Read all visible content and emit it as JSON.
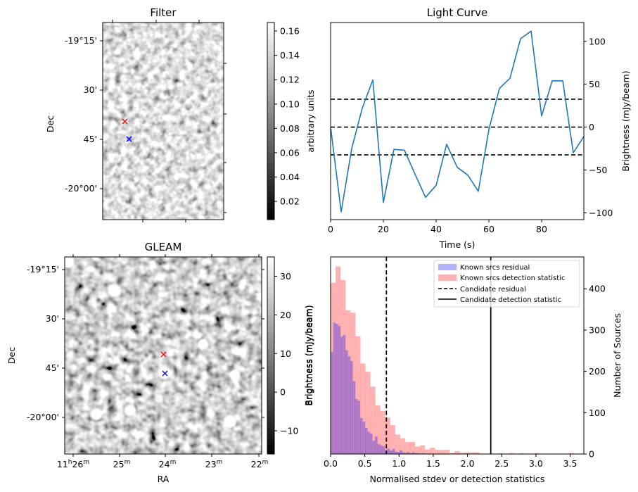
{
  "panels": {
    "filter": {
      "title": "Filter",
      "ylabel": "Dec",
      "dec_ticks": [
        "-19°15'",
        "30'",
        "45'",
        "-20°00'"
      ],
      "colorbar": {
        "label": "arbitrary units",
        "range": [
          0.005,
          0.167
        ],
        "ticks": [
          "0.02",
          "0.04",
          "0.06",
          "0.08",
          "0.10",
          "0.12",
          "0.14",
          "0.16"
        ],
        "tick_values": [
          0.02,
          0.04,
          0.06,
          0.08,
          0.1,
          0.12,
          0.14,
          0.16
        ],
        "colormap": "gray"
      },
      "markers": [
        {
          "name": "candidate-position",
          "color": "#ff0000",
          "symbol": "x"
        },
        {
          "name": "known-source-position",
          "color": "#0000ff",
          "symbol": "x"
        }
      ]
    },
    "gleam": {
      "title": "GLEAM",
      "xlabel": "RA",
      "ylabel": "Dec",
      "ra_ticks": [
        {
          "main": "11",
          "sup1": "h",
          "main2": "26",
          "sup2": "m"
        },
        {
          "main": "25",
          "sup": "m"
        },
        {
          "main": "24",
          "sup": "m"
        },
        {
          "main": "23",
          "sup": "m"
        },
        {
          "main": "22",
          "sup": "m"
        }
      ],
      "dec_ticks": [
        "-19°15'",
        "30'",
        "45'",
        "-20°00'"
      ],
      "colorbar": {
        "label": "Brightness (mJy/beam)",
        "range": [
          -16,
          35
        ],
        "ticks": [
          "−10",
          "0",
          "10",
          "20",
          "30"
        ],
        "tick_values": [
          -10,
          0,
          10,
          20,
          30
        ],
        "colormap": "gray"
      },
      "markers": [
        {
          "name": "candidate-position",
          "color": "#ff0000",
          "symbol": "x"
        },
        {
          "name": "known-source-position",
          "color": "#0000ff",
          "symbol": "x"
        }
      ]
    }
  },
  "chart_data": [
    {
      "type": "line",
      "title": "Light Curve",
      "xlabel": "Time (s)",
      "ylabel": "Brightness (mJy/beam)",
      "xlim": [
        0,
        96
      ],
      "ylim": [
        -108,
        122
      ],
      "xticks": [
        0,
        20,
        40,
        60,
        80
      ],
      "yticks": [
        -100,
        -50,
        0,
        50,
        100
      ],
      "ytick_labels": [
        "−100",
        "−50",
        "0",
        "50",
        "100"
      ],
      "yaxis_side": "right",
      "series": [
        {
          "name": "light-curve",
          "color": "#1f77b4",
          "x": [
            0,
            4,
            8,
            12,
            16,
            20,
            24,
            28,
            32,
            36,
            40,
            44,
            48,
            52,
            56,
            60,
            64,
            68,
            72,
            76,
            80,
            84,
            88,
            92,
            96
          ],
          "y": [
            0,
            -99,
            -25,
            22,
            55,
            -88,
            -26,
            -27,
            -55,
            -82,
            -68,
            -20,
            -47,
            -56,
            -75,
            -3,
            45,
            57,
            103,
            112,
            13,
            54,
            54,
            -30,
            -11
          ]
        }
      ],
      "hlines": [
        {
          "name": "upper-threshold",
          "y": 32.5,
          "style": "dashed",
          "color": "#000000"
        },
        {
          "name": "mean",
          "y": 0,
          "style": "dashed",
          "color": "#000000"
        },
        {
          "name": "lower-threshold",
          "y": -32.5,
          "style": "dashed",
          "color": "#000000"
        }
      ]
    },
    {
      "type": "bar",
      "subtype": "histogram",
      "title": "",
      "xlabel": "Normalised stdev or detection statistics",
      "ylabel_left": "Brightness (mJy/beam)",
      "ylabel": "Number of Sources",
      "xlim": [
        0,
        3.7
      ],
      "ylim": [
        0,
        477
      ],
      "xticks": [
        0.0,
        0.5,
        1.0,
        1.5,
        2.0,
        2.5,
        3.0,
        3.5
      ],
      "xtick_labels": [
        "0.0",
        "0.5",
        "1.0",
        "1.5",
        "2.0",
        "2.5",
        "3.0",
        "3.5"
      ],
      "yticks": [
        0,
        100,
        200,
        300,
        400
      ],
      "yaxis_side": "right",
      "series": [
        {
          "name": "Known srcs residual",
          "color": "#0000ff",
          "alpha": 0.3,
          "bin_start": 0.0,
          "bin_width": 0.036,
          "values": [
            247,
            318,
            315,
            310,
            284,
            288,
            251,
            237,
            225,
            176,
            133,
            129,
            87,
            78,
            63,
            54,
            49,
            32,
            42,
            24,
            21,
            19,
            10,
            13,
            8,
            12,
            6,
            5,
            9,
            4,
            3,
            5,
            2,
            4,
            2,
            2,
            1,
            2,
            1,
            1
          ]
        },
        {
          "name": "Known srcs detection statistic",
          "color": "#ff0000",
          "alpha": 0.3,
          "bin_start": 0.0,
          "bin_width": 0.0725,
          "values": [
            414,
            454,
            421,
            348,
            342,
            285,
            219,
            199,
            163,
            118,
            104,
            88,
            70,
            47,
            38,
            29,
            29,
            18,
            21,
            11,
            15,
            10,
            10,
            10,
            2,
            7,
            3,
            4,
            4,
            4,
            1,
            0,
            1,
            0,
            2,
            0,
            2,
            0,
            2,
            0,
            0,
            2,
            0,
            0,
            0,
            0,
            0,
            0,
            2
          ]
        }
      ],
      "vlines": [
        {
          "name": "Candidate residual",
          "x": 0.815,
          "style": "dashed",
          "color": "#000000"
        },
        {
          "name": "Candidate detection statistic",
          "x": 2.34,
          "style": "solid",
          "color": "#000000"
        }
      ],
      "legend": {
        "placement": "top-right",
        "entries": [
          {
            "label": "Known srcs residual",
            "kind": "patch",
            "color": "#b2b2ff"
          },
          {
            "label": "Known srcs detection statistic",
            "kind": "patch",
            "color": "#ffb2b2"
          },
          {
            "label": "Candidate residual",
            "kind": "dashed",
            "color": "#000000"
          },
          {
            "label": "Candidate detection statistic",
            "kind": "solid",
            "color": "#000000"
          }
        ]
      }
    }
  ]
}
